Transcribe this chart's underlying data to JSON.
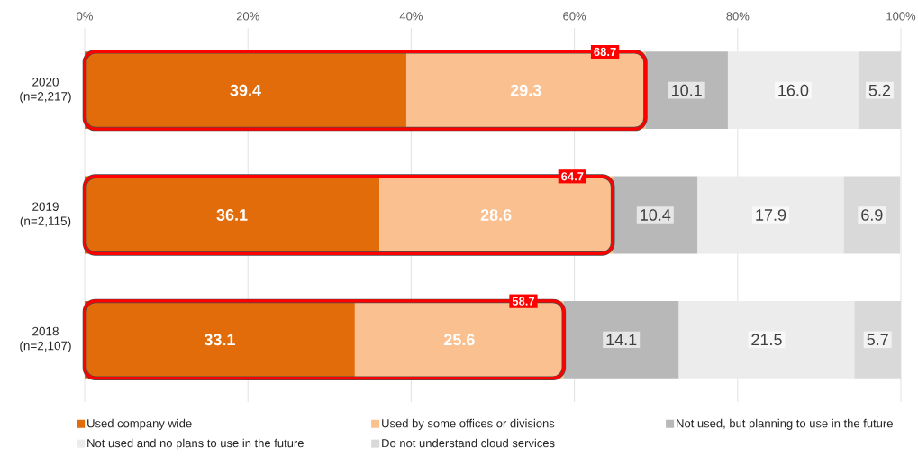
{
  "chart_data": {
    "type": "bar",
    "orientation": "horizontal",
    "categories": [
      "2020 (n=2,217)",
      "2019 (n=2,115)",
      "2018 (n=2,107)"
    ],
    "series": [
      {
        "name": "Used company wide",
        "color": "#e36c0a",
        "base": [
          0,
          0,
          0
        ],
        "values": [
          39.4,
          36.1,
          33.1
        ],
        "value_labels": [
          "39.4",
          "36.1",
          "33.1"
        ]
      },
      {
        "name": "Used by some offices or divisions",
        "color": "#fac090",
        "base": [
          39.4,
          36.1,
          33.1
        ],
        "values": [
          29.3,
          28.6,
          25.6
        ],
        "value_labels": [
          "29.3",
          "28.6",
          "25.6"
        ]
      },
      {
        "name": "Not used, but planning to use in the future",
        "color": "#b8b8b8",
        "base": [
          68.7,
          64.7,
          58.7
        ],
        "values": [
          10.1,
          10.4,
          14.1
        ],
        "value_labels": [
          "10.1",
          "10.4",
          "14.1"
        ]
      },
      {
        "name": "Not used and no plans to use in the future",
        "color": "#ececec",
        "base": [
          78.8,
          75.1,
          72.8
        ],
        "values": [
          16.0,
          17.9,
          21.5
        ],
        "value_labels": [
          "16.0",
          "17.9",
          "21.5"
        ]
      },
      {
        "name": "Do not understand cloud services",
        "color": "#d9d9d9",
        "base": [
          94.8,
          93.0,
          94.3
        ],
        "values": [
          5.2,
          6.9,
          5.7
        ],
        "value_labels": [
          "5.2",
          "6.9",
          "5.7"
        ]
      },
      {
        "color": "#ff0000",
        "base": [
          0,
          0,
          0
        ],
        "values": [
          68.7,
          64.7,
          58.7
        ],
        "value_labels": [
          "68.7",
          "64.7",
          "58.7"
        ]
      }
    ],
    "xlim": [
      0,
      100
    ],
    "xticks": [
      {
        "value": 0,
        "label": "0%"
      },
      {
        "value": 20,
        "label": "20%"
      },
      {
        "value": 40,
        "label": "40%"
      },
      {
        "value": 60,
        "label": "60%"
      },
      {
        "value": 80,
        "label": "80%"
      },
      {
        "value": 100,
        "label": "100%"
      }
    ],
    "grid": "x",
    "legend": "bottom"
  }
}
